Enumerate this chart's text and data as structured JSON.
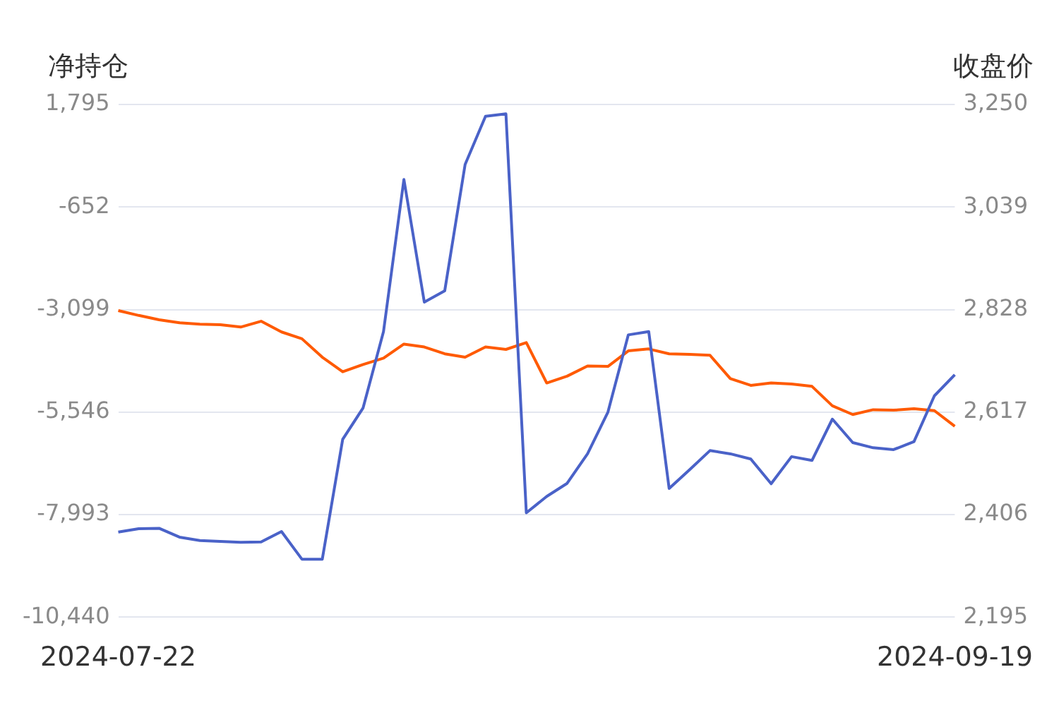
{
  "chart_data": {
    "type": "line",
    "ylabel": "净持仓",
    "y2label": "收盘价",
    "categories": [
      "2024-07-22",
      null,
      null,
      null,
      null,
      null,
      null,
      null,
      null,
      null,
      null,
      null,
      null,
      null,
      null,
      null,
      null,
      null,
      null,
      null,
      null,
      null,
      null,
      null,
      null,
      null,
      null,
      null,
      null,
      null,
      null,
      null,
      null,
      null,
      null,
      null,
      null,
      null,
      null,
      null,
      null,
      "2024-09-19"
    ],
    "series": [
      {
        "color": "#4a62c8",
        "values": [
          -8409,
          -8328,
          -8318,
          -8529,
          -8610,
          -8630,
          -8653,
          -8643,
          -8395,
          -9055,
          -9055,
          -6196,
          -5445,
          -3625,
          5,
          -2921,
          -2653,
          364,
          1513,
          1570,
          -7949,
          -7557,
          -7245,
          -6541,
          -5546,
          -3702,
          -3625,
          -7369,
          -6920,
          -6464,
          -6541,
          -6665,
          -7255,
          -6608,
          -6699,
          -5713,
          -6273,
          -6397,
          -6441,
          -6250,
          -5157,
          -4654
        ]
      },
      {
        "color": "#ff5a00",
        "axis": "y2",
        "values": [
          2826,
          2816,
          2807,
          2801,
          2798,
          2797,
          2792,
          2804,
          2782,
          2768,
          2730,
          2700,
          2715,
          2728,
          2757,
          2751,
          2737,
          2730,
          2751,
          2746,
          2760,
          2677,
          2691,
          2712,
          2711,
          2743,
          2747,
          2737,
          2736,
          2734,
          2686,
          2672,
          2677,
          2675,
          2670,
          2630,
          2612,
          2622,
          2621,
          2624,
          2620,
          2588
        ]
      }
    ],
    "ylim": [
      -10440,
      1795
    ],
    "yticks": [
      {
        "value": -10440,
        "label": "-10,440"
      },
      {
        "value": -7993,
        "label": "-7,993"
      },
      {
        "value": -5546,
        "label": "-5,546"
      },
      {
        "value": -3099,
        "label": "-3,099"
      },
      -652,
      {
        "value": 1795,
        "label": "1,795"
      }
    ],
    "y2lim": [
      2195,
      3250
    ],
    "y2ticks": [
      {
        "value": 2195,
        "label": "2,195"
      },
      {
        "value": 2406,
        "label": "2,406"
      },
      {
        "value": 2617,
        "label": "2,617"
      },
      {
        "value": 2828,
        "label": "2,828"
      },
      {
        "value": 3039,
        "label": "3,039"
      },
      {
        "value": 3250,
        "label": "3,250"
      }
    ],
    "grid": "y",
    "legend": false,
    "marker": "none",
    "line_style": "solid"
  }
}
